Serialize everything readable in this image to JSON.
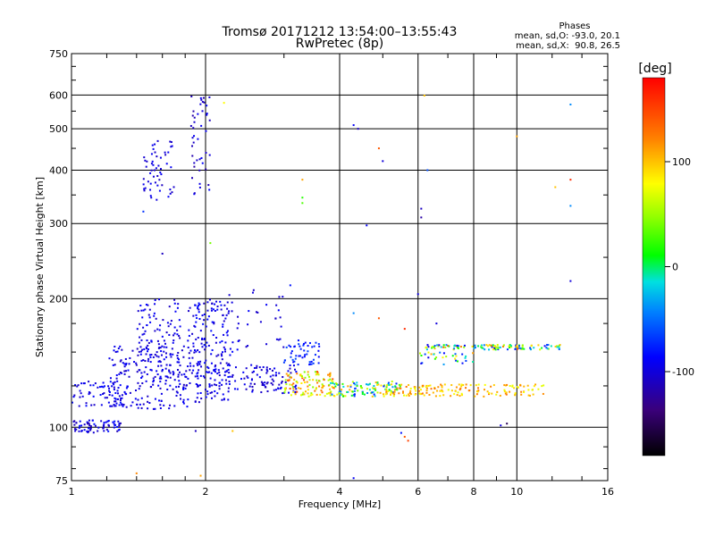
{
  "chart_data": {
    "type": "scatter",
    "title": "Tromsø 20171212 13:54:00–13:55:43",
    "subtitle": "RwPretec (8p)",
    "xlabel": "Frequency [MHz]",
    "ylabel": "Stationary phase Virtual Height [km]",
    "x_scale": "log",
    "y_scale": "log",
    "xlim": [
      1,
      16
    ],
    "ylim": [
      75,
      750
    ],
    "x_ticks": [
      1,
      2,
      4,
      6,
      8,
      10,
      16
    ],
    "x_tick_labels": [
      "1",
      "2",
      "4",
      "6",
      "8",
      "10",
      "16"
    ],
    "y_ticks": [
      75,
      100,
      200,
      300,
      400,
      500,
      600,
      750
    ],
    "y_tick_labels": [
      "75",
      "100",
      "200",
      "300",
      "400",
      "500",
      "600",
      "750"
    ],
    "grid": true,
    "info_box": {
      "title": "Phases",
      "line1": "mean, sd,O: -93.0, 20.1",
      "line2": "mean, sd,X:  90.8, 26.5"
    },
    "colorbar": {
      "label": "[deg]",
      "range": [
        -180,
        180
      ],
      "ticks": [
        100,
        0,
        -100
      ],
      "tick_labels": [
        "100",
        "0",
        "-100"
      ]
    },
    "clusters": [
      {
        "x": [
          1.0,
          1.3
        ],
        "y": [
          97,
          104
        ],
        "phase": [
          -120,
          -80
        ],
        "count": 70
      },
      {
        "x": [
          1.0,
          1.3
        ],
        "y": [
          112,
          128
        ],
        "phase": [
          -110,
          -80
        ],
        "count": 60
      },
      {
        "x": [
          1.2,
          1.95
        ],
        "y": [
          110,
          155
        ],
        "phase": [
          -110,
          -85
        ],
        "count": 220
      },
      {
        "x": [
          1.4,
          1.9
        ],
        "y": [
          130,
          200
        ],
        "phase": [
          -110,
          -85
        ],
        "count": 130
      },
      {
        "x": [
          1.45,
          1.7
        ],
        "y": [
          340,
          470
        ],
        "phase": [
          -110,
          -90
        ],
        "count": 55
      },
      {
        "x": [
          1.85,
          2.05
        ],
        "y": [
          350,
          600
        ],
        "phase": [
          -120,
          -85
        ],
        "count": 45
      },
      {
        "x": [
          1.9,
          2.3
        ],
        "y": [
          115,
          200
        ],
        "phase": [
          -110,
          -80
        ],
        "count": 140
      },
      {
        "x": [
          2.0,
          3.2
        ],
        "y": [
          120,
          140
        ],
        "phase": [
          -115,
          -85
        ],
        "count": 120
      },
      {
        "x": [
          2.2,
          3.0
        ],
        "y": [
          150,
          210
        ],
        "phase": [
          -110,
          -85
        ],
        "count": 40
      },
      {
        "x": [
          3.0,
          3.6
        ],
        "y": [
          140,
          160
        ],
        "phase": [
          -90,
          -60
        ],
        "count": 50
      },
      {
        "x": [
          3.0,
          3.9
        ],
        "y": [
          118,
          135
        ],
        "phase": [
          40,
          150
        ],
        "count": 110
      },
      {
        "x": [
          3.8,
          5.5
        ],
        "y": [
          118,
          128
        ],
        "phase": [
          -80,
          110
        ],
        "count": 110
      },
      {
        "x": [
          5.0,
          11.5
        ],
        "y": [
          118,
          126
        ],
        "phase": [
          70,
          130
        ],
        "count": 160
      },
      {
        "x": [
          6.2,
          12.5
        ],
        "y": [
          152,
          156
        ],
        "phase": [
          -110,
          140
        ],
        "count": 120
      },
      {
        "x": [
          6.0,
          8.0
        ],
        "y": [
          140,
          150
        ],
        "phase": [
          -100,
          120
        ],
        "count": 30
      }
    ],
    "points": [
      {
        "x": 4.3,
        "y": 510,
        "phase": -90
      },
      {
        "x": 4.4,
        "y": 500,
        "phase": -110
      },
      {
        "x": 5.0,
        "y": 420,
        "phase": -100
      },
      {
        "x": 4.9,
        "y": 450,
        "phase": 140
      },
      {
        "x": 6.3,
        "y": 400,
        "phase": -60
      },
      {
        "x": 6.1,
        "y": 325,
        "phase": -110
      },
      {
        "x": 6.1,
        "y": 310,
        "phase": -120
      },
      {
        "x": 4.6,
        "y": 297,
        "phase": -90
      },
      {
        "x": 6.0,
        "y": 205,
        "phase": -100
      },
      {
        "x": 3.3,
        "y": 380,
        "phase": 110
      },
      {
        "x": 3.3,
        "y": 345,
        "phase": 20
      },
      {
        "x": 3.3,
        "y": 335,
        "phase": 30
      },
      {
        "x": 3.1,
        "y": 215,
        "phase": -80
      },
      {
        "x": 2.2,
        "y": 575,
        "phase": 80
      },
      {
        "x": 2.05,
        "y": 270,
        "phase": 40
      },
      {
        "x": 1.6,
        "y": 255,
        "phase": -110
      },
      {
        "x": 1.45,
        "y": 320,
        "phase": -70
      },
      {
        "x": 5.6,
        "y": 95,
        "phase": 140
      },
      {
        "x": 5.7,
        "y": 93,
        "phase": 150
      },
      {
        "x": 5.5,
        "y": 97,
        "phase": -80
      },
      {
        "x": 4.3,
        "y": 76,
        "phase": -90
      },
      {
        "x": 1.4,
        "y": 78,
        "phase": 120
      },
      {
        "x": 1.9,
        "y": 98,
        "phase": -110
      },
      {
        "x": 1.95,
        "y": 77,
        "phase": 110
      },
      {
        "x": 2.3,
        "y": 98,
        "phase": 100
      },
      {
        "x": 9.5,
        "y": 102,
        "phase": -150
      },
      {
        "x": 9.2,
        "y": 101,
        "phase": -100
      },
      {
        "x": 13.2,
        "y": 570,
        "phase": -40
      },
      {
        "x": 13.2,
        "y": 380,
        "phase": 160
      },
      {
        "x": 13.2,
        "y": 330,
        "phase": -40
      },
      {
        "x": 13.2,
        "y": 220,
        "phase": -100
      },
      {
        "x": 12.2,
        "y": 365,
        "phase": 100
      },
      {
        "x": 10.0,
        "y": 480,
        "phase": 110
      },
      {
        "x": 6.2,
        "y": 598,
        "phase": 100
      },
      {
        "x": 4.3,
        "y": 185,
        "phase": -40
      },
      {
        "x": 4.9,
        "y": 180,
        "phase": 140
      },
      {
        "x": 5.6,
        "y": 170,
        "phase": 160
      },
      {
        "x": 6.6,
        "y": 175,
        "phase": -100
      }
    ]
  }
}
